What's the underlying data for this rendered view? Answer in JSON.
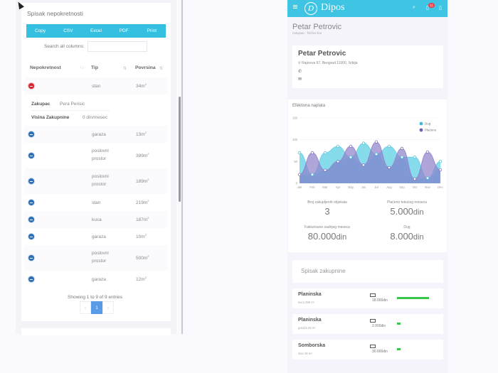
{
  "left": {
    "card_title": "Spisak nepokretnosti",
    "export_buttons": [
      "Copy",
      "CSV",
      "Excel",
      "PDF",
      "Print"
    ],
    "search": {
      "label": "Search all columns:",
      "value": "",
      "placeholder": ""
    },
    "columns": [
      "Nepokretnost",
      "Tip",
      "Povrsina"
    ],
    "rows": [
      {
        "tip": "stan",
        "povrsina": "34m",
        "expanded": true
      },
      {
        "tip": "garaza",
        "povrsina": "13m"
      },
      {
        "tip": "poslovni prostor",
        "povrsina": "389m"
      },
      {
        "tip": "poslovni prostor",
        "povrsina": "189m"
      },
      {
        "tip": "stan",
        "povrsina": "219m"
      },
      {
        "tip": "kuca",
        "povrsina": "187m"
      },
      {
        "tip": "garaza",
        "povrsina": "10m"
      },
      {
        "tip": "poslovni prostor",
        "povrsina": "500m"
      },
      {
        "tip": "garaza",
        "povrsina": "12m"
      }
    ],
    "child": {
      "zakupac_label": "Zakupac",
      "zakupac_value": "Pera Perisic",
      "visina_label": "Visina Zakupnine",
      "visina_value": "0 din/mesec"
    },
    "info": "Showing 1 to 9 of 9 entries",
    "pager": {
      "prev": "‹",
      "current": "1",
      "next": "›"
    }
  },
  "right": {
    "brand": "Dipos",
    "logo_letter": "D",
    "icons": {
      "menu": "hamburger-icon",
      "search": "search-icon",
      "notifications": "bell-icon",
      "phone": "mobile-icon"
    },
    "notification_count": "11",
    "page_title": "Petar Petrovic",
    "page_subtitle": "zakupac - fizičko lice",
    "profile": {
      "name": "Petar Petrovic",
      "address": "Rajiceva 67, Beograd 11000, Srbija",
      "phone": "",
      "email": ""
    },
    "chart_title": "Efektivna naplata",
    "stats": [
      {
        "label": "Broj zakupljenih objekata",
        "value": "3",
        "unit": ""
      },
      {
        "label": "Plaćeno tekućeg meseca",
        "value": "5.000",
        "unit": "din"
      },
      {
        "label": "Fakturisano zadnjeg meseca",
        "value": "80.000",
        "unit": "din"
      },
      {
        "label": "Dug",
        "value": "8.000",
        "unit": "din"
      }
    ],
    "list_title": "Spisak zakupnine",
    "list": [
      {
        "name": "Planinska",
        "sub": "kuća 298 m²",
        "amount": "18.000din",
        "bar": 45
      },
      {
        "name": "Planinska",
        "sub": "garaža 29 m²",
        "amount": "2.000din",
        "bar": 5
      },
      {
        "name": "Somborska",
        "sub": "stan 38 m²",
        "amount": "30.000din",
        "bar": 5
      }
    ],
    "colors": {
      "dug": "#5fd0e6",
      "placeno": "#8f7fc9",
      "overlap": "#7e98d4",
      "topbar": "#3fc4e4",
      "bar": "#35c84a"
    }
  },
  "chart_data": {
    "type": "area",
    "title": "Efektivna naplata",
    "categories": [
      "Jan",
      "Feb",
      "Mar",
      "Apr",
      "May",
      "Jun",
      "Jul",
      "Aug",
      "Sep",
      "Oct",
      "Nov",
      "Dec"
    ],
    "series": [
      {
        "name": "Dug",
        "values": [
          70,
          20,
          70,
          85,
          60,
          92,
          67,
          85,
          60,
          60,
          12,
          50
        ]
      },
      {
        "name": "Plaćeno",
        "values": [
          20,
          70,
          30,
          50,
          85,
          42,
          95,
          36,
          80,
          10,
          72,
          31
        ]
      }
    ],
    "yticks": [
      0,
      50,
      100,
      150
    ],
    "ylim": [
      0,
      150
    ],
    "legend_position": "top-right",
    "grid": true
  }
}
